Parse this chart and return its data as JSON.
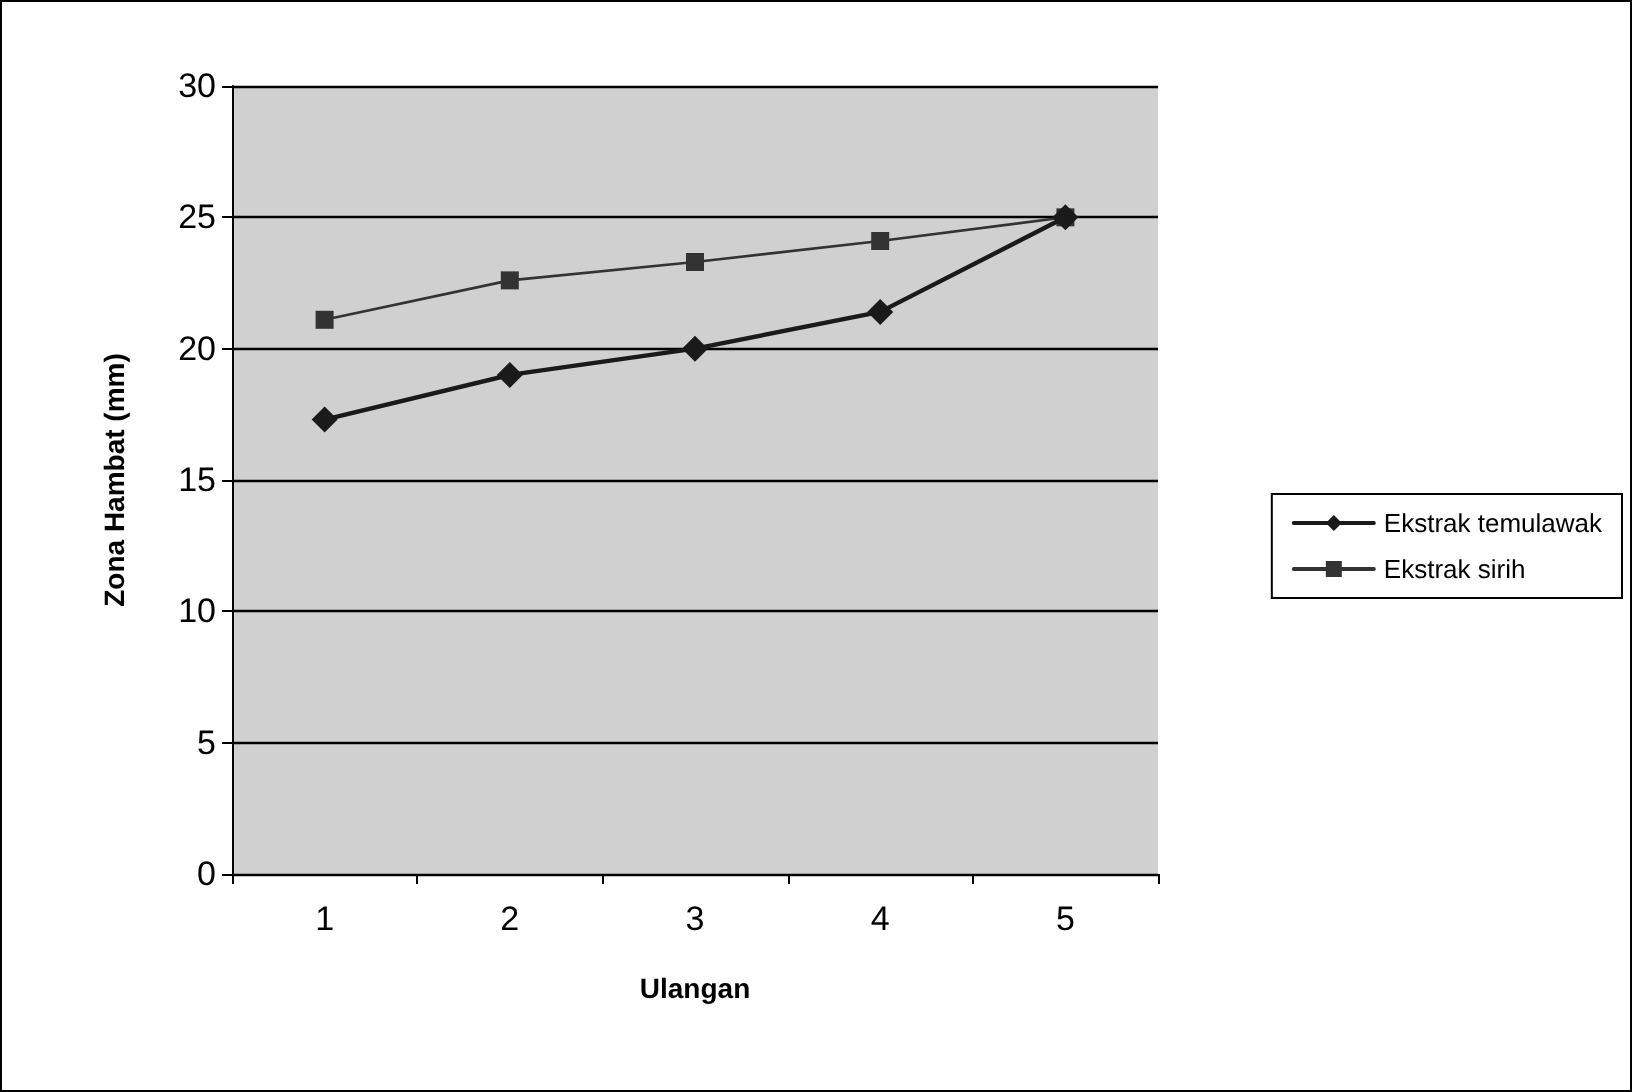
{
  "chart_data": {
    "type": "line",
    "xlabel": "Ulangan",
    "ylabel": "Zona Hambat (mm)",
    "categories": [
      "1",
      "2",
      "3",
      "4",
      "5"
    ],
    "series": [
      {
        "name": "Ekstrak temulawak",
        "color": "#1a1a1a",
        "marker": "diamond",
        "values": [
          17.3,
          19,
          20,
          21.4,
          25
        ]
      },
      {
        "name": "Ekstrak sirih",
        "color": "#333333",
        "marker": "square",
        "values": [
          21.1,
          22.6,
          23.3,
          24.1,
          25
        ]
      }
    ],
    "ylim": [
      0,
      30
    ],
    "yticks": [
      0,
      5,
      10,
      15,
      20,
      25,
      30
    ],
    "grid": "y",
    "legend": "right",
    "line_style": "solid"
  }
}
